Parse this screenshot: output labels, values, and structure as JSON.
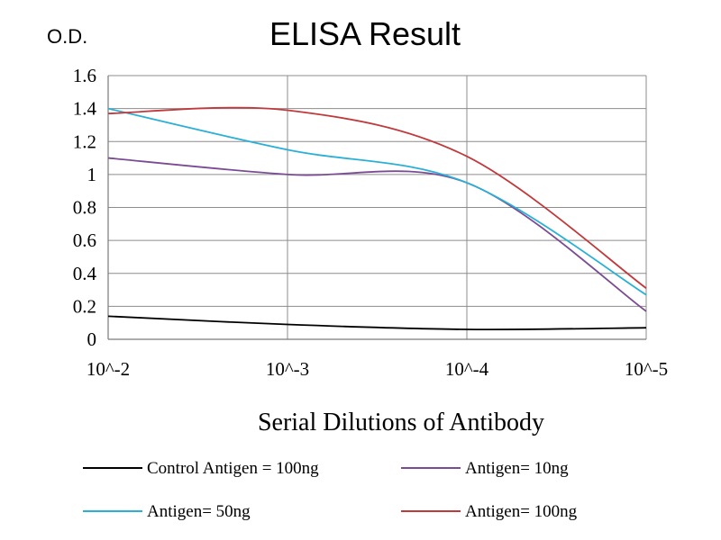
{
  "chart_data": {
    "type": "line",
    "title": "ELISA Result",
    "ylabel": "O.D.",
    "xlabel": "Serial Dilutions  of Antibody",
    "categories": [
      "10^-2",
      "10^-3",
      "10^-4",
      "10^-5"
    ],
    "ylim": [
      0,
      1.6
    ],
    "yticks": [
      "0",
      "0.2",
      "0.4",
      "0.6",
      "0.8",
      "1",
      "1.2",
      "1.4",
      "1.6"
    ],
    "grid": true,
    "legend_position": "bottom",
    "series": [
      {
        "name": "Control Antigen = 100ng",
        "color": "#000000",
        "values": [
          0.14,
          0.09,
          0.06,
          0.07
        ]
      },
      {
        "name": "Antigen= 10ng",
        "color": "#7b4b94",
        "values": [
          1.1,
          1.0,
          0.95,
          0.17
        ]
      },
      {
        "name": "Antigen= 50ng",
        "color": "#2ab0d6",
        "values": [
          1.4,
          1.15,
          0.95,
          0.27
        ]
      },
      {
        "name": "Antigen= 100ng",
        "color": "#c0393b",
        "values": [
          1.37,
          1.39,
          1.11,
          0.31
        ]
      }
    ]
  }
}
